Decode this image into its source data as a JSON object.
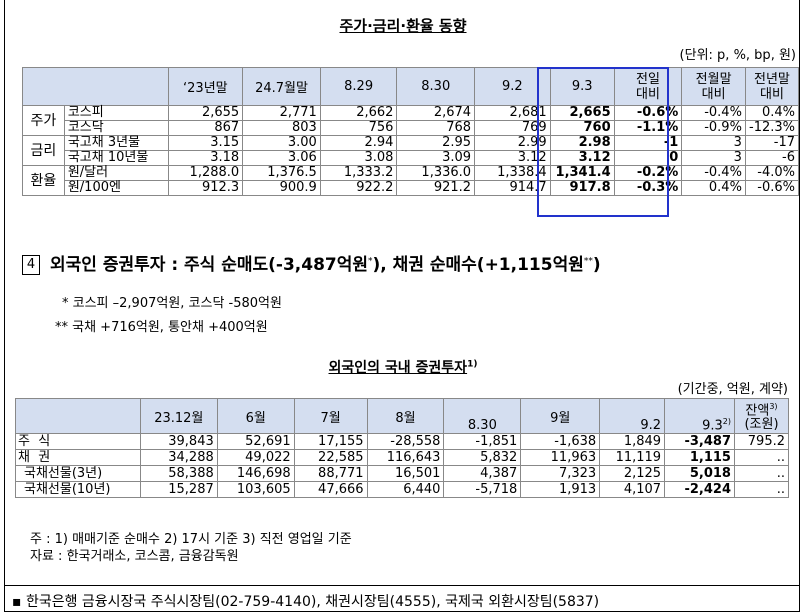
{
  "title1": "주가·금리·환율 동향",
  "unit1": "(단위: p, %, bp, 원)",
  "t1": {
    "headers": [
      "‘23년말",
      "24.7월말",
      "8.29",
      "8.30",
      "9.2",
      "9.3",
      "전일\n대비",
      "전월말\n대비",
      "전년말\n대비"
    ],
    "groups": [
      "주가",
      "금리",
      "환율"
    ],
    "rows": [
      {
        "sub": "코스피",
        "vals": [
          "2,655",
          "2,771",
          "2,662",
          "2,674",
          "2,681",
          "2,665",
          "-0.6%",
          "-0.4%",
          "0.4%"
        ]
      },
      {
        "sub": "코스닥",
        "vals": [
          "867",
          "803",
          "756",
          "768",
          "769",
          "760",
          "-1.1%",
          "-0.9%",
          "-12.3%"
        ]
      },
      {
        "sub": "국고채 3년물",
        "vals": [
          "3.15",
          "3.00",
          "2.94",
          "2.95",
          "2.99",
          "2.98",
          "-1",
          "3",
          "-17"
        ]
      },
      {
        "sub": "국고채 10년물",
        "vals": [
          "3.18",
          "3.06",
          "3.08",
          "3.09",
          "3.12",
          "3.12",
          "0",
          "3",
          "-6"
        ]
      },
      {
        "sub": "원/달러",
        "vals": [
          "1,288.0",
          "1,376.5",
          "1,333.2",
          "1,336.0",
          "1,338.4",
          "1,341.4",
          "-0.2%",
          "-0.4%",
          "-4.0%"
        ]
      },
      {
        "sub": "원/100엔",
        "vals": [
          "912.3",
          "900.9",
          "922.2",
          "921.2",
          "914.7",
          "917.8",
          "-0.3%",
          "0.4%",
          "-0.6%"
        ]
      }
    ]
  },
  "sec4": {
    "num": "4",
    "text": "외국인 증권투자 : 주식 순매도(-3,487억원",
    "sup1": "*",
    "text2": "), 채권 순매수(+1,115억원",
    "sup2": "**",
    "text3": ")"
  },
  "note1": "* 코스피 –2,907억원, 코스닥 -580억원",
  "note2": "** 국채 +716억원, 통안채 +400억원",
  "title2": "외국인의 국내 증권투자",
  "title2_sup": "1)",
  "unit2": "(기간중, 억원, 계약)",
  "t2": {
    "headers": [
      "",
      "23.12월",
      "6월",
      "7월",
      "8월",
      "8.30",
      "9월",
      "9.2",
      "9.3",
      "잔액",
      "(조원)"
    ],
    "h93sup": "2)",
    "hbalsup": "3)",
    "rows": [
      {
        "label": "주  식",
        "vals": [
          "39,843",
          "52,691",
          "17,155",
          "-28,558",
          "-1,851",
          "-1,638",
          "1,849",
          "-3,487",
          "795.2"
        ]
      },
      {
        "label": "채  권",
        "vals": [
          "34,288",
          "49,022",
          "22,585",
          "116,643",
          "5,832",
          "11,963",
          "11,119",
          "1,115",
          ".."
        ]
      },
      {
        "label": "국채선물(3년)",
        "vals": [
          "58,388",
          "146,698",
          "88,771",
          "16,501",
          "4,387",
          "7,323",
          "2,125",
          "5,018",
          ".."
        ]
      },
      {
        "label": "국채선물(10년)",
        "vals": [
          "15,287",
          "103,605",
          "47,666",
          "6,440",
          "-5,718",
          "1,913",
          "4,107",
          "-2,424",
          ".."
        ]
      }
    ]
  },
  "foot1": "주 : 1) 매매기준 순매수    2) 17시 기준     3) 직전 영업일 기준",
  "foot2": "자료 : 한국거래소, 코스콤, 금융감독원",
  "contact": "▪ 한국은행 금융시장국 주식시장팀(02-759-4140), 채권시장팀(4555), 국제국 외환시장팀(5837)"
}
